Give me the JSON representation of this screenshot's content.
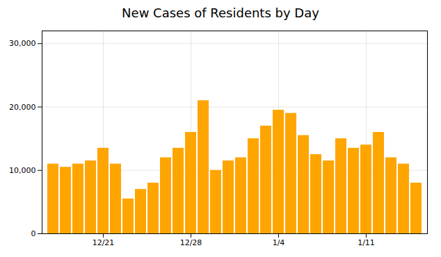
{
  "chart_data": {
    "type": "bar",
    "title": "New Cases of Residents by Day",
    "categories": [
      null,
      null,
      null,
      null,
      "12/21",
      null,
      null,
      null,
      null,
      null,
      null,
      "12/28",
      null,
      null,
      null,
      null,
      null,
      null,
      "1/4",
      null,
      null,
      null,
      null,
      null,
      null,
      "1/11",
      null,
      null,
      null,
      null
    ],
    "values": [
      11000,
      10500,
      11000,
      11500,
      13500,
      11000,
      5500,
      7000,
      8000,
      12000,
      13500,
      16000,
      21000,
      10000,
      11500,
      12000,
      15000,
      17000,
      19500,
      19000,
      15500,
      12500,
      11500,
      15000,
      13500,
      14000,
      16000,
      12000,
      11000,
      8000
    ],
    "color": "#FFA500",
    "ylim": [
      0,
      32000
    ],
    "yticks": [
      0,
      {
        "value": 10000,
        "label": "10,000"
      },
      {
        "value": 20000,
        "label": "20,000"
      },
      {
        "value": 30000,
        "label": "30,000"
      }
    ],
    "grid": true
  }
}
